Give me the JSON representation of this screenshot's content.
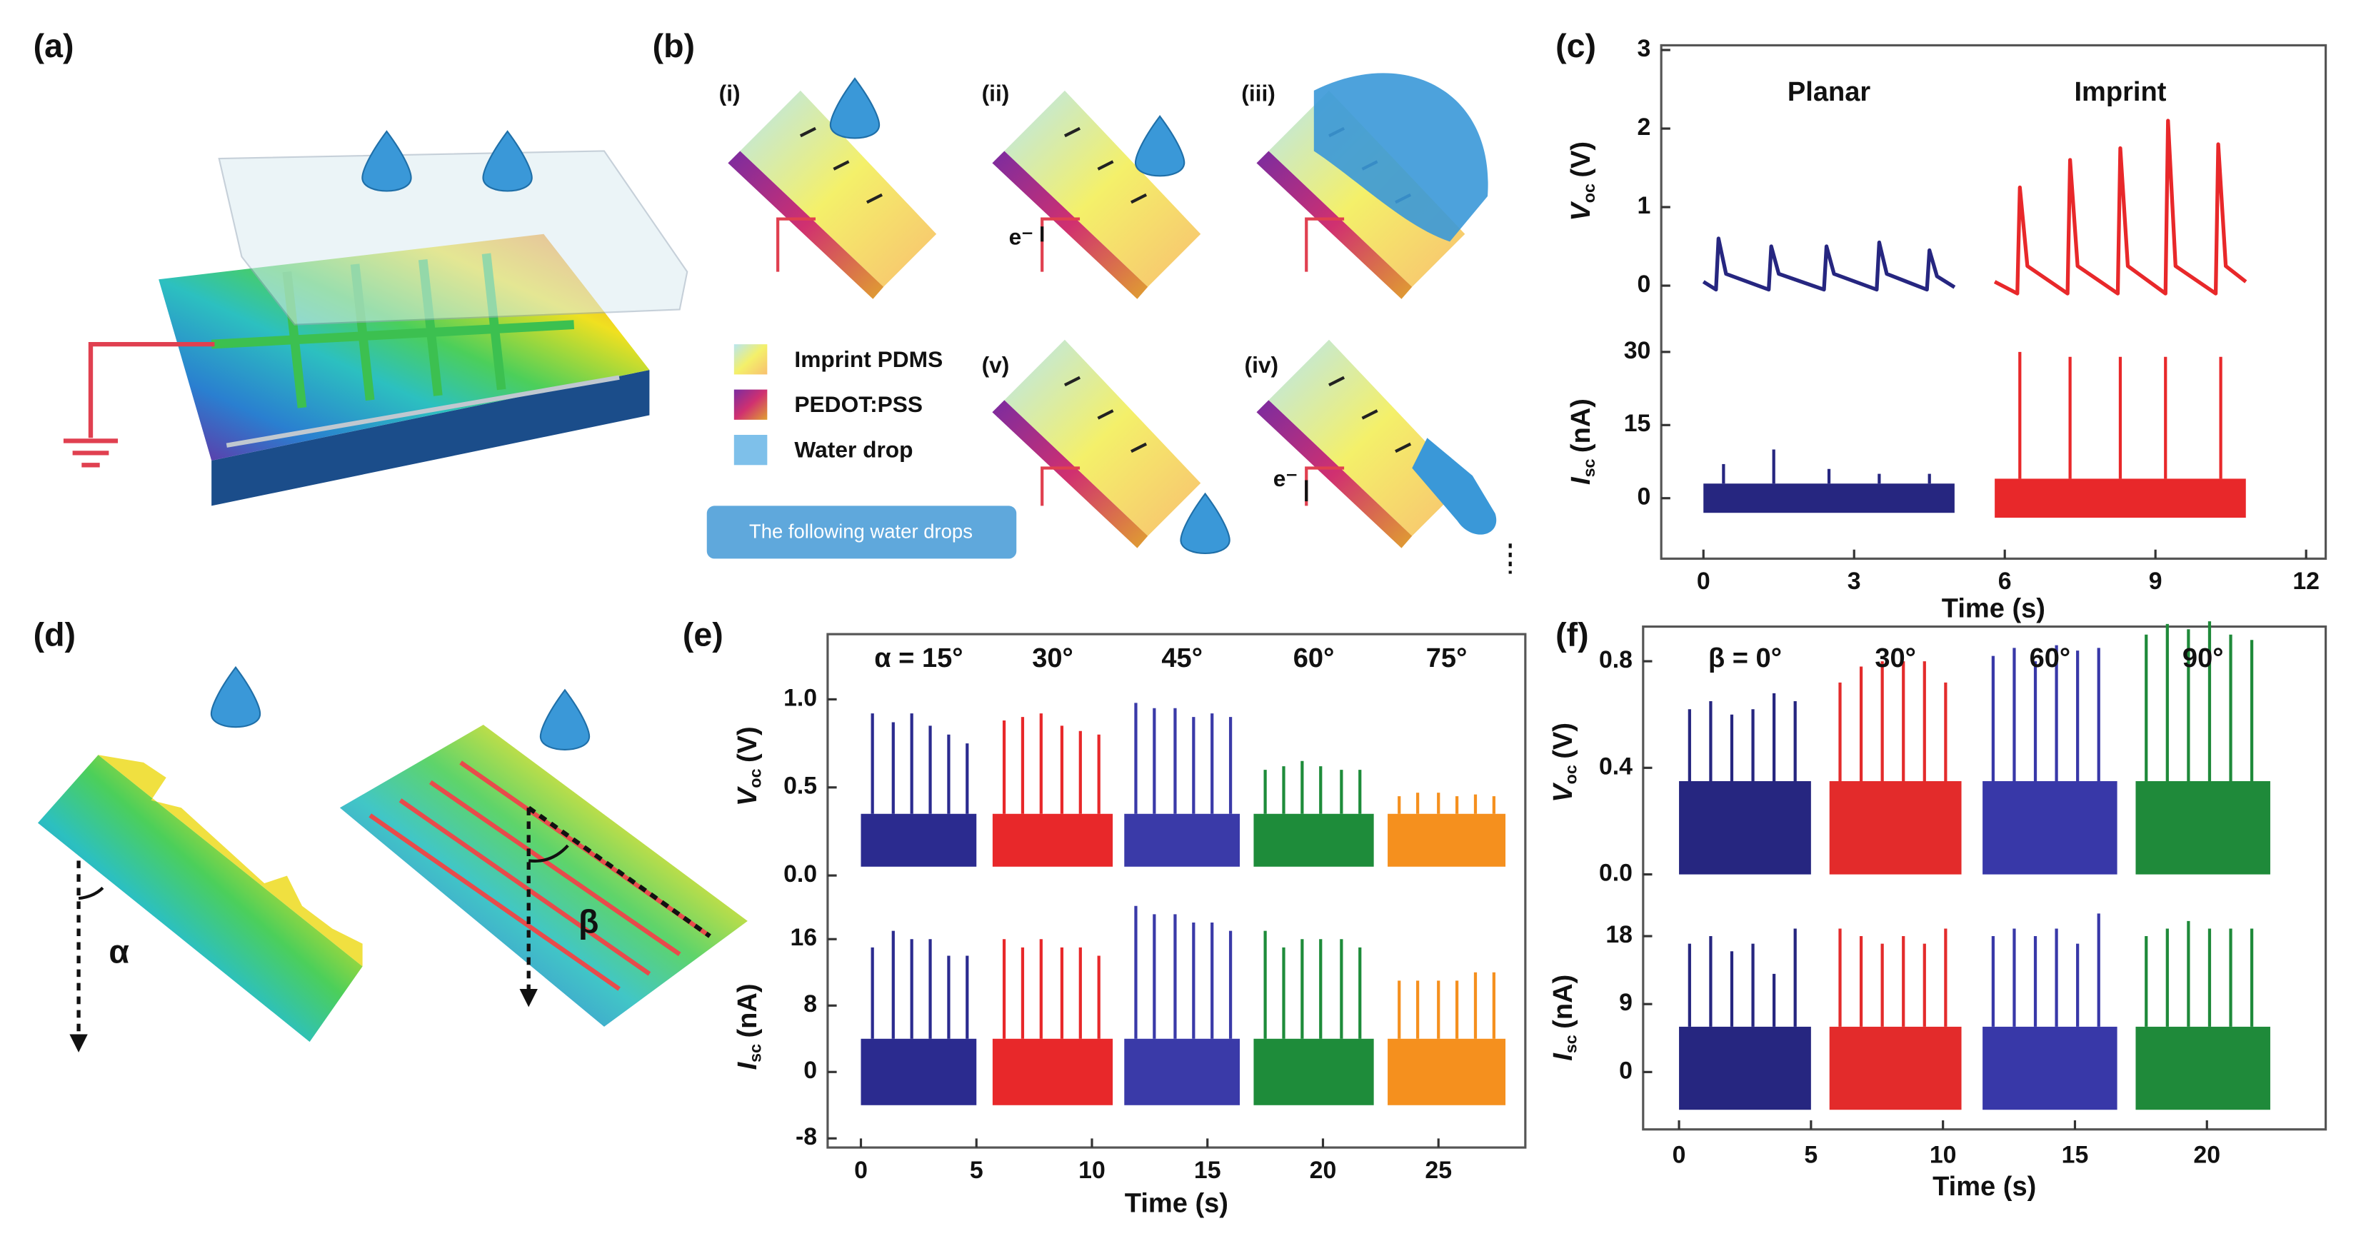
{
  "panel_labels": [
    "(a)",
    "(b)",
    "(c)",
    "(d)",
    "(e)",
    "(f)"
  ],
  "diagram_b": {
    "steps": [
      "(i)",
      "(ii)",
      "(iii)",
      "(iv)",
      "(v)"
    ],
    "legend": [
      "Imprint PDMS",
      "PEDOT:PSS",
      "Water drop"
    ],
    "button": "The following water drops",
    "electron": "e⁻"
  },
  "diagram_d": {
    "angles": [
      "α",
      "β"
    ]
  },
  "chart_data": [
    {
      "type": "line",
      "x_label": "Time (s)",
      "xlim": [
        -0.84,
        12.39
      ],
      "xticks": [
        0,
        3,
        6,
        9,
        12
      ],
      "subplots": [
        {
          "y_label": {
            "symbol": "V",
            "sub": "oc",
            "unit": "(V)"
          },
          "ylim": [
            -0.4,
            3.06
          ],
          "yticks": [
            0,
            1,
            2,
            3
          ],
          "series": [
            {
              "name": "Planar",
              "color": "#262680",
              "x": [
                0,
                0.25,
                0.3,
                0.45,
                1.3,
                1.35,
                1.5,
                2.4,
                2.45,
                2.6,
                3.45,
                3.5,
                3.65,
                4.45,
                4.5,
                4.65,
                5.0
              ],
              "values": [
                0.05,
                -0.05,
                0.6,
                0.15,
                -0.05,
                0.5,
                0.15,
                -0.05,
                0.5,
                0.15,
                -0.05,
                0.55,
                0.15,
                -0.05,
                0.45,
                0.12,
                -0.02
              ]
            },
            {
              "name": "Imprint",
              "color": "#e8282a",
              "x": [
                5.8,
                6.25,
                6.3,
                6.45,
                7.25,
                7.3,
                7.45,
                8.25,
                8.3,
                8.45,
                9.2,
                9.25,
                9.4,
                10.2,
                10.25,
                10.4,
                10.8
              ],
              "values": [
                0.05,
                -0.1,
                1.25,
                0.25,
                -0.1,
                1.6,
                0.25,
                -0.1,
                1.75,
                0.25,
                -0.1,
                2.1,
                0.25,
                -0.1,
                1.8,
                0.25,
                0.05
              ]
            }
          ]
        },
        {
          "y_label": {
            "symbol": "I",
            "sub": "sc",
            "unit": "(nA)"
          },
          "ylim": [
            -12.4,
            35.6
          ],
          "yticks": [
            0,
            15,
            30
          ],
          "series": [
            {
              "color": "#262680",
              "span": [
                0,
                5
              ],
              "band": [
                -3,
                3
              ],
              "x": [
                0.4,
                1.4,
                2.5,
                3.5,
                4.5
              ],
              "values": [
                7,
                10,
                6,
                5,
                5
              ]
            },
            {
              "color": "#e8282a",
              "span": [
                5.8,
                10.8
              ],
              "band": [
                -4,
                4
              ],
              "x": [
                6.3,
                7.3,
                8.3,
                9.2,
                10.3
              ],
              "values": [
                30,
                29,
                29,
                29,
                29
              ]
            }
          ]
        }
      ]
    },
    {
      "type": "line",
      "x_label": "Time (s)",
      "xlim": [
        -1.44,
        28.76
      ],
      "xticks": [
        0,
        5,
        10,
        15,
        20,
        25
      ],
      "subplots": [
        {
          "y_label": {
            "symbol": "V",
            "sub": "oc",
            "unit": "(V)"
          },
          "ylim": [
            -0.13,
            1.37
          ],
          "yticks": [
            {
              "value": 0,
              "label": "0.0"
            },
            0.5,
            {
              "value": 1,
              "label": "1.0"
            }
          ],
          "series": [
            {
              "name": "α = 15°",
              "color": "#2b2b8f",
              "span": [
                0,
                5
              ],
              "band": [
                0.05,
                0.35
              ],
              "x": [
                0.5,
                1.4,
                2.2,
                3.0,
                3.8,
                4.6
              ],
              "values": [
                0.92,
                0.87,
                0.92,
                0.85,
                0.8,
                0.75
              ]
            },
            {
              "name": "30°",
              "color": "#e8282a",
              "span": [
                5.7,
                10.9
              ],
              "band": [
                0.05,
                0.35
              ],
              "x": [
                6.2,
                7.0,
                7.8,
                8.7,
                9.5,
                10.3
              ],
              "values": [
                0.88,
                0.9,
                0.92,
                0.85,
                0.82,
                0.8
              ]
            },
            {
              "name": "45°",
              "color": "#3a3aa8",
              "span": [
                11.4,
                16.4
              ],
              "band": [
                0.05,
                0.35
              ],
              "x": [
                11.9,
                12.7,
                13.6,
                14.4,
                15.2,
                16.0
              ],
              "values": [
                0.98,
                0.95,
                0.95,
                0.9,
                0.92,
                0.9
              ]
            },
            {
              "name": "60°",
              "color": "#1e8c3a",
              "span": [
                17.0,
                22.2
              ],
              "band": [
                0.05,
                0.35
              ],
              "x": [
                17.5,
                18.3,
                19.1,
                19.9,
                20.8,
                21.6
              ],
              "values": [
                0.6,
                0.62,
                0.65,
                0.62,
                0.6,
                0.6
              ]
            },
            {
              "name": "75°",
              "color": "#f5901e",
              "span": [
                22.8,
                27.9
              ],
              "band": [
                0.05,
                0.35
              ],
              "x": [
                23.3,
                24.1,
                25.0,
                25.8,
                26.6,
                27.4
              ],
              "values": [
                0.45,
                0.47,
                0.47,
                0.45,
                0.46,
                0.45
              ]
            }
          ]
        },
        {
          "y_label": {
            "symbol": "I",
            "sub": "sc",
            "unit": "(nA)"
          },
          "ylim": [
            -9.1,
            20
          ],
          "yticks": [
            -8,
            0,
            8,
            16
          ],
          "series": [
            {
              "color": "#2b2b8f",
              "span": [
                0,
                5
              ],
              "band": [
                -4,
                4
              ],
              "x": [
                0.5,
                1.4,
                2.2,
                3.0,
                3.8,
                4.6
              ],
              "values": [
                15,
                17,
                16,
                16,
                14,
                14
              ]
            },
            {
              "color": "#e8282a",
              "span": [
                5.7,
                10.9
              ],
              "band": [
                -4,
                4
              ],
              "x": [
                6.2,
                7.0,
                7.8,
                8.7,
                9.5,
                10.3
              ],
              "values": [
                16,
                15,
                16,
                15,
                15,
                14
              ]
            },
            {
              "color": "#3a3aa8",
              "span": [
                11.4,
                16.4
              ],
              "band": [
                -4,
                4
              ],
              "x": [
                11.9,
                12.7,
                13.6,
                14.4,
                15.2,
                16.0
              ],
              "values": [
                20,
                19,
                19,
                18,
                18,
                17
              ]
            },
            {
              "color": "#1e8c3a",
              "span": [
                17.0,
                22.2
              ],
              "band": [
                -4,
                4
              ],
              "x": [
                17.5,
                18.3,
                19.1,
                19.9,
                20.8,
                21.6
              ],
              "values": [
                17,
                15,
                16,
                16,
                16,
                15
              ]
            },
            {
              "color": "#f5901e",
              "span": [
                22.8,
                27.9
              ],
              "band": [
                -4,
                4
              ],
              "x": [
                23.3,
                24.1,
                25.0,
                25.8,
                26.6,
                27.4
              ],
              "values": [
                11,
                11,
                11,
                11,
                12,
                12
              ]
            }
          ]
        }
      ]
    },
    {
      "type": "line",
      "x_label": "Time (s)",
      "xlim": [
        -1.36,
        24.5
      ],
      "xticks": [
        0,
        5,
        10,
        15,
        20
      ],
      "subplots": [
        {
          "y_label": {
            "symbol": "V",
            "sub": "oc",
            "unit": "(V)"
          },
          "ylim": [
            -0.09,
            0.93
          ],
          "yticks": [
            {
              "value": 0,
              "label": "0.0"
            },
            0.4,
            0.8
          ],
          "series": [
            {
              "name": "β = 0°",
              "color": "#262680",
              "span": [
                0,
                5
              ],
              "band": [
                0,
                0.35
              ],
              "x": [
                0.4,
                1.2,
                2.0,
                2.8,
                3.6,
                4.4
              ],
              "values": [
                0.62,
                0.65,
                0.6,
                0.62,
                0.68,
                0.65
              ]
            },
            {
              "name": "30°",
              "color": "#e32b2b",
              "span": [
                5.7,
                10.7
              ],
              "band": [
                0,
                0.35
              ],
              "x": [
                6.1,
                6.9,
                7.7,
                8.5,
                9.3,
                10.1
              ],
              "values": [
                0.72,
                0.78,
                0.8,
                0.8,
                0.8,
                0.72
              ]
            },
            {
              "name": "60°",
              "color": "#3838a8",
              "span": [
                11.5,
                16.6
              ],
              "band": [
                0,
                0.35
              ],
              "x": [
                11.9,
                12.7,
                13.5,
                14.3,
                15.1,
                15.9
              ],
              "values": [
                0.82,
                0.85,
                0.8,
                0.86,
                0.84,
                0.85
              ]
            },
            {
              "name": "90°",
              "color": "#1f8a3a",
              "span": [
                17.3,
                22.4
              ],
              "band": [
                0,
                0.35
              ],
              "x": [
                17.7,
                18.5,
                19.3,
                20.1,
                20.9,
                21.7
              ],
              "values": [
                0.9,
                0.94,
                0.92,
                0.95,
                0.9,
                0.88
              ]
            }
          ]
        },
        {
          "y_label": {
            "symbol": "I",
            "sub": "sc",
            "unit": "(nA)"
          },
          "ylim": [
            -7.6,
            22
          ],
          "yticks": [
            0,
            9,
            18
          ],
          "series": [
            {
              "color": "#262680",
              "span": [
                0,
                5
              ],
              "band": [
                -5,
                6
              ],
              "x": [
                0.4,
                1.2,
                2.0,
                2.8,
                3.6,
                4.4
              ],
              "values": [
                17,
                18,
                16,
                17,
                13,
                19
              ]
            },
            {
              "color": "#e32b2b",
              "span": [
                5.7,
                10.7
              ],
              "band": [
                -5,
                6
              ],
              "x": [
                6.1,
                6.9,
                7.7,
                8.5,
                9.3,
                10.1
              ],
              "values": [
                19,
                18,
                17,
                18,
                17,
                19
              ]
            },
            {
              "color": "#3838a8",
              "span": [
                11.5,
                16.6
              ],
              "band": [
                -5,
                6
              ],
              "x": [
                11.9,
                12.7,
                13.5,
                14.3,
                15.1,
                15.9
              ],
              "values": [
                18,
                19,
                18,
                19,
                17,
                21
              ]
            },
            {
              "color": "#1f8a3a",
              "span": [
                17.3,
                22.4
              ],
              "band": [
                -5,
                6
              ],
              "x": [
                17.7,
                18.5,
                19.3,
                20.1,
                20.9,
                21.7
              ],
              "values": [
                18,
                19,
                20,
                19,
                19,
                19
              ]
            }
          ]
        }
      ]
    }
  ]
}
